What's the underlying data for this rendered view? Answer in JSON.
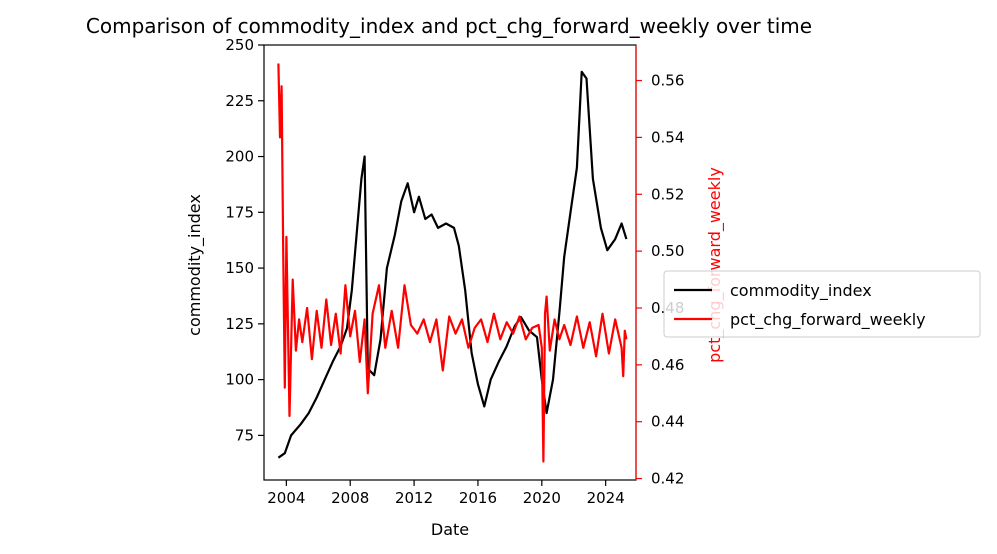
{
  "chart_data": {
    "type": "line",
    "title": "Comparison of commodity_index and pct_chg_forward_weekly over time",
    "xlabel": "Date",
    "ylabel_left": "commodity_index",
    "ylabel_right": "pct_chg_forward_weekly",
    "xlim": [
      2002.6,
      2025.9
    ],
    "ylim_left": [
      55,
      250
    ],
    "ylim_right": [
      0.4195,
      0.5725
    ],
    "x_ticks": [
      {
        "value": 2004,
        "label": "2004"
      },
      {
        "value": 2008,
        "label": "2008"
      },
      {
        "value": 2012,
        "label": "2012"
      },
      {
        "value": 2016,
        "label": "2016"
      },
      {
        "value": 2020,
        "label": "2020"
      },
      {
        "value": 2024,
        "label": "2024"
      }
    ],
    "y_left_ticks": [
      {
        "value": 75,
        "label": "75"
      },
      {
        "value": 100,
        "label": "100"
      },
      {
        "value": 125,
        "label": "125"
      },
      {
        "value": 150,
        "label": "150"
      },
      {
        "value": 175,
        "label": "175"
      },
      {
        "value": 200,
        "label": "200"
      },
      {
        "value": 225,
        "label": "225"
      },
      {
        "value": 250,
        "label": "250"
      }
    ],
    "y_right_ticks": [
      {
        "value": 0.42,
        "label": "0.42"
      },
      {
        "value": 0.44,
        "label": "0.44"
      },
      {
        "value": 0.46,
        "label": "0.46"
      },
      {
        "value": 0.48,
        "label": "0.48"
      },
      {
        "value": 0.5,
        "label": "0.50"
      },
      {
        "value": 0.52,
        "label": "0.52"
      },
      {
        "value": 0.54,
        "label": "0.54"
      },
      {
        "value": 0.56,
        "label": "0.56"
      }
    ],
    "grid": false,
    "legend_position": "center-right",
    "series": [
      {
        "name": "commodity_index",
        "axis": "left",
        "color": "#000000",
        "x": [
          2003.5,
          2003.9,
          2004.3,
          2004.9,
          2005.4,
          2005.9,
          2006.4,
          2006.9,
          2007.4,
          2007.8,
          2008.1,
          2008.4,
          2008.7,
          2008.9,
          2009.1,
          2009.5,
          2009.9,
          2010.3,
          2010.8,
          2011.2,
          2011.6,
          2012.0,
          2012.3,
          2012.7,
          2013.1,
          2013.5,
          2014.0,
          2014.5,
          2014.8,
          2015.2,
          2015.6,
          2016.0,
          2016.4,
          2016.8,
          2017.3,
          2017.8,
          2018.3,
          2018.7,
          2019.2,
          2019.7,
          2020.0,
          2020.3,
          2020.7,
          2021.1,
          2021.4,
          2021.8,
          2022.2,
          2022.5,
          2022.8,
          2023.2,
          2023.7,
          2024.1,
          2024.6,
          2025.0,
          2025.3
        ],
        "y": [
          65,
          67,
          75,
          80,
          85,
          92,
          100,
          108,
          115,
          123,
          140,
          165,
          190,
          200,
          105,
          102,
          118,
          150,
          165,
          180,
          188,
          175,
          182,
          172,
          174,
          168,
          170,
          168,
          160,
          140,
          112,
          98,
          88,
          100,
          108,
          115,
          124,
          128,
          122,
          119,
          100,
          85,
          100,
          130,
          155,
          175,
          195,
          238,
          235,
          190,
          168,
          158,
          163,
          170,
          163
        ]
      },
      {
        "name": "pct_chg_forward_weekly",
        "axis": "right",
        "color": "#ff0000",
        "x": [
          2003.5,
          2003.6,
          2003.7,
          2003.8,
          2003.9,
          2004.0,
          2004.2,
          2004.4,
          2004.6,
          2004.8,
          2005.0,
          2005.3,
          2005.6,
          2005.9,
          2006.2,
          2006.5,
          2006.8,
          2007.1,
          2007.4,
          2007.7,
          2008.0,
          2008.3,
          2008.6,
          2008.9,
          2009.1,
          2009.4,
          2009.8,
          2010.2,
          2010.6,
          2011.0,
          2011.4,
          2011.8,
          2012.2,
          2012.6,
          2013.0,
          2013.4,
          2013.8,
          2014.2,
          2014.6,
          2015.0,
          2015.4,
          2015.8,
          2016.2,
          2016.6,
          2017.0,
          2017.4,
          2017.8,
          2018.2,
          2018.6,
          2019.0,
          2019.4,
          2019.8,
          2020.0,
          2020.1,
          2020.2,
          2020.3,
          2020.5,
          2020.8,
          2021.1,
          2021.4,
          2021.8,
          2022.2,
          2022.6,
          2023.0,
          2023.4,
          2023.8,
          2024.2,
          2024.6,
          2025.0,
          2025.1,
          2025.2,
          2025.3
        ],
        "y": [
          0.566,
          0.54,
          0.558,
          0.5,
          0.452,
          0.505,
          0.442,
          0.49,
          0.465,
          0.476,
          0.468,
          0.48,
          0.462,
          0.479,
          0.466,
          0.483,
          0.467,
          0.478,
          0.464,
          0.488,
          0.47,
          0.479,
          0.461,
          0.476,
          0.45,
          0.478,
          0.488,
          0.466,
          0.479,
          0.466,
          0.488,
          0.474,
          0.471,
          0.476,
          0.468,
          0.476,
          0.458,
          0.477,
          0.471,
          0.476,
          0.466,
          0.473,
          0.476,
          0.468,
          0.478,
          0.469,
          0.475,
          0.471,
          0.477,
          0.469,
          0.473,
          0.474,
          0.466,
          0.426,
          0.478,
          0.484,
          0.465,
          0.476,
          0.469,
          0.474,
          0.467,
          0.477,
          0.466,
          0.475,
          0.463,
          0.478,
          0.464,
          0.476,
          0.466,
          0.456,
          0.472,
          0.469
        ]
      }
    ]
  }
}
